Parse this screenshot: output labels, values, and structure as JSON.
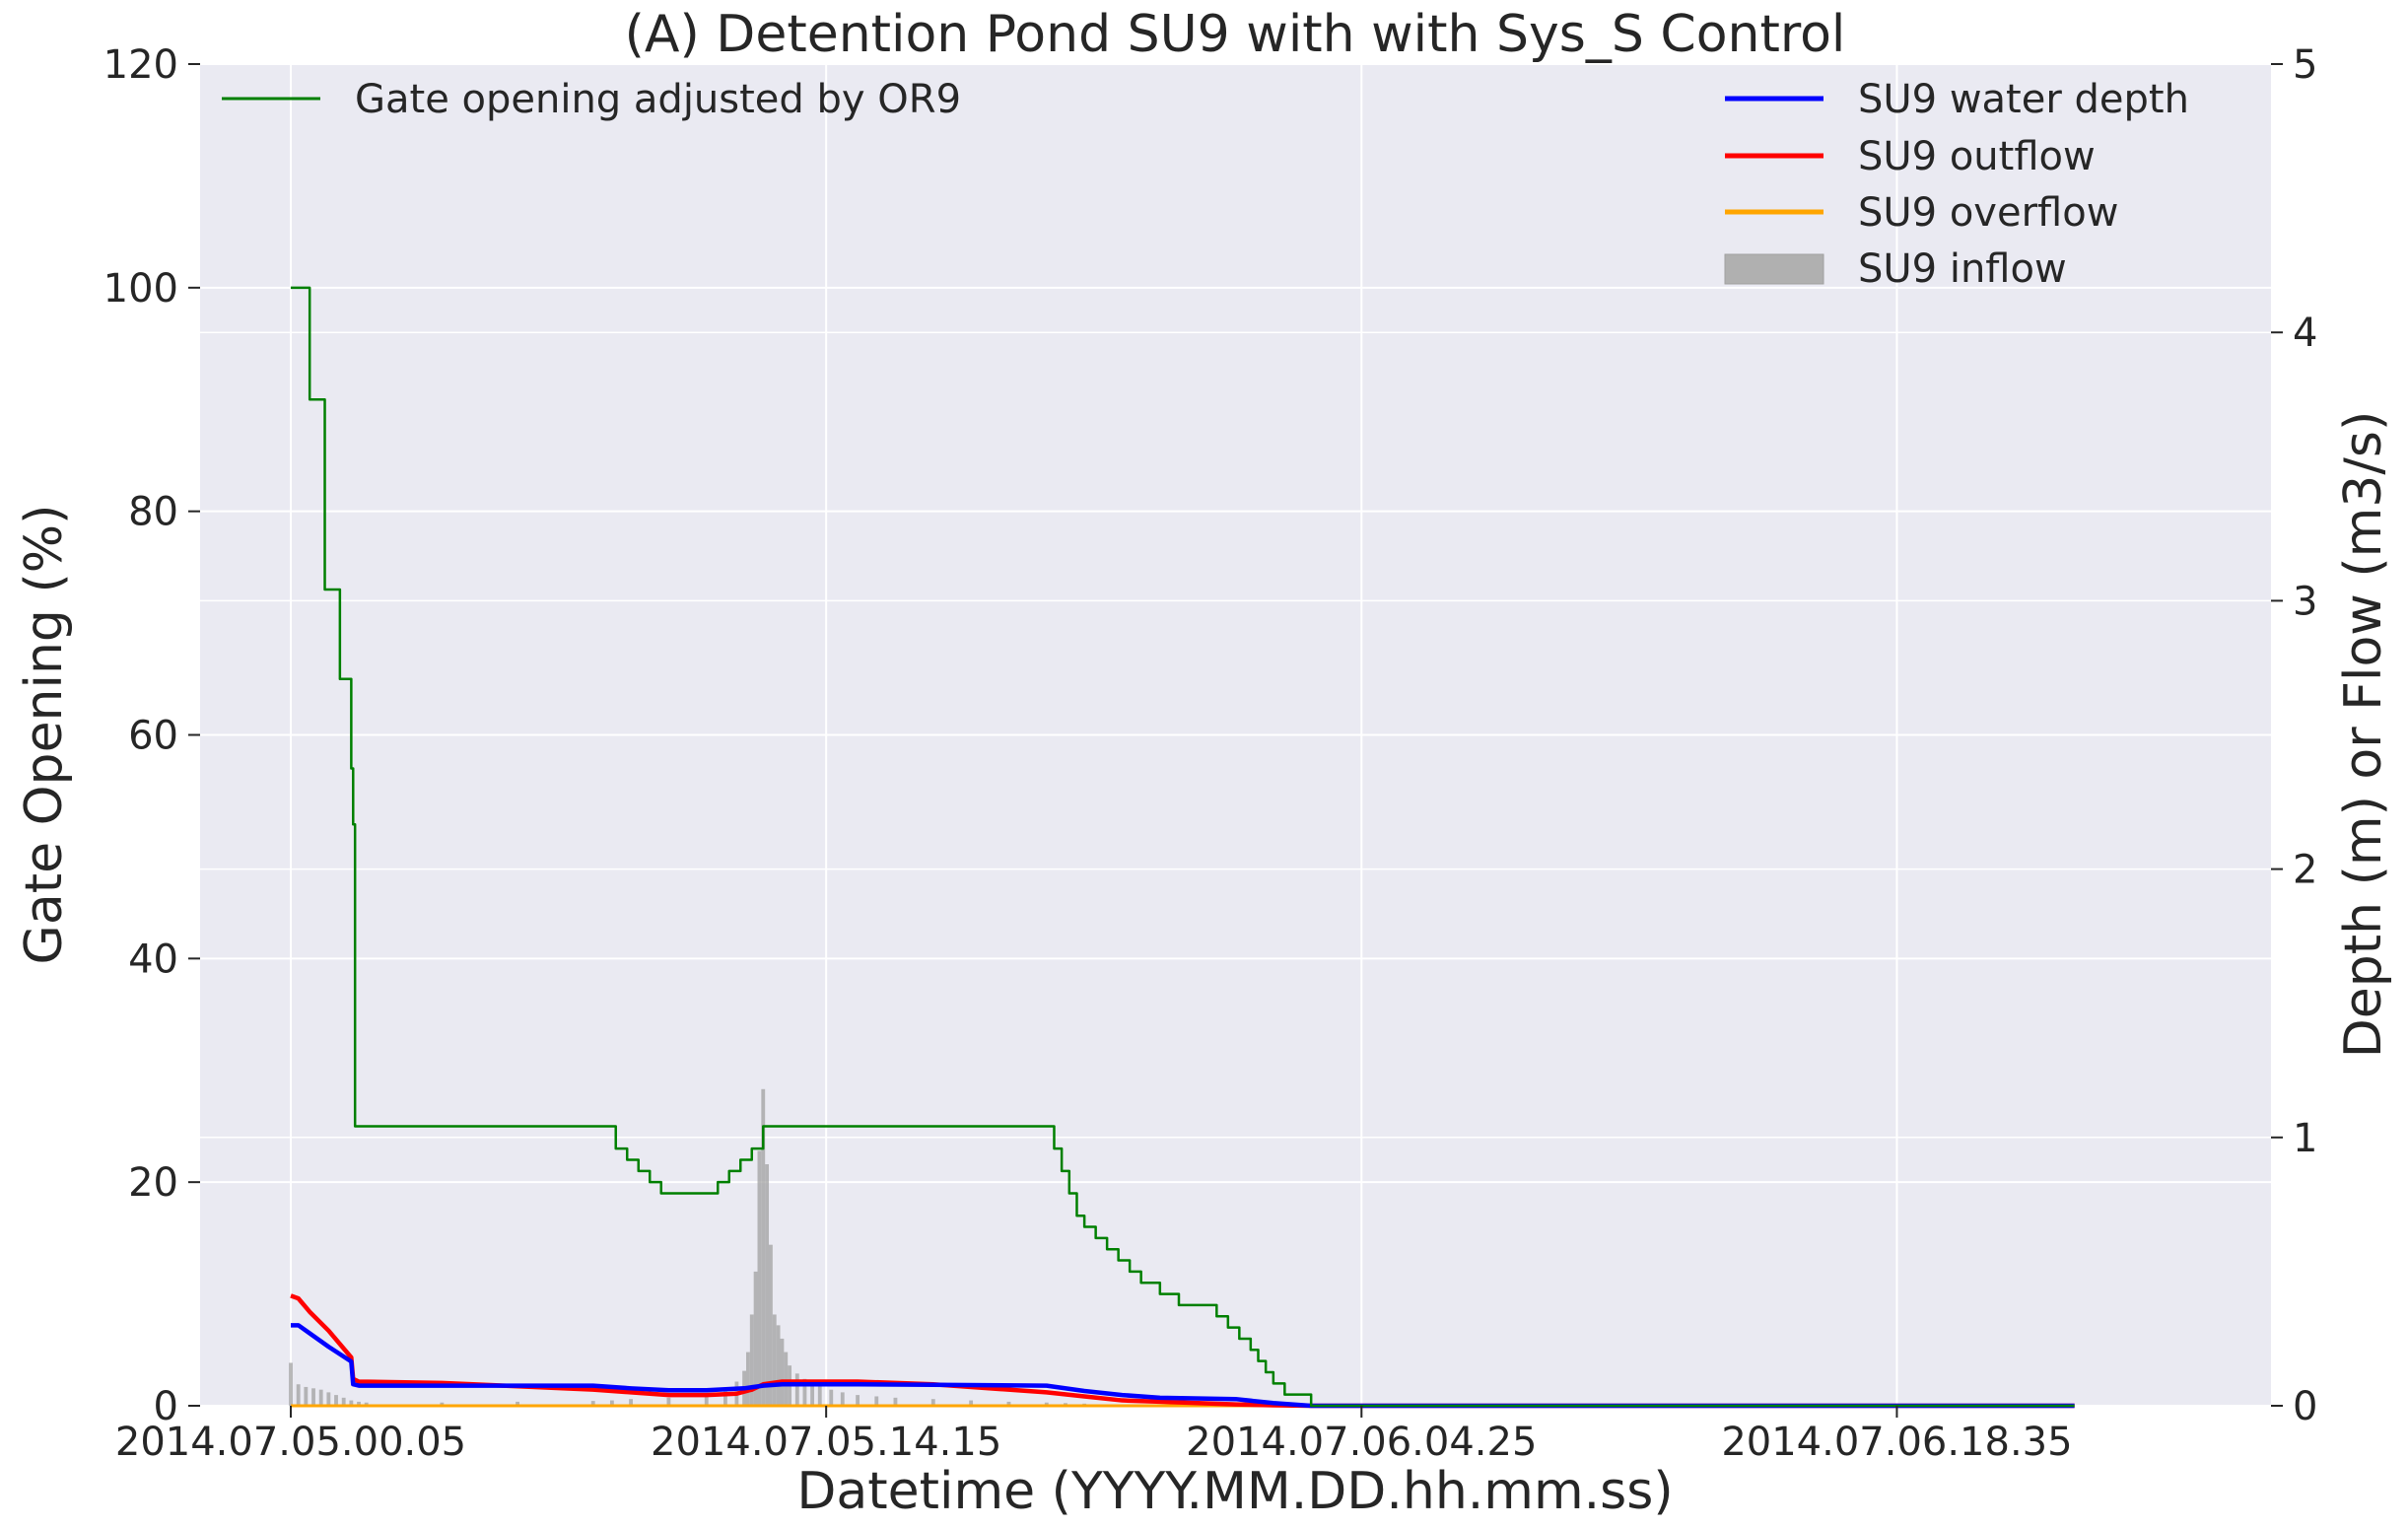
{
  "chart_data": {
    "type": "line",
    "title": "(A) Detention Pond SU9 with with Sys_S Control",
    "xlabel": "Datetime (YYYY.MM.DD.hh.mm.ss)",
    "ylabel_left": "Gate Opening (%)",
    "ylabel_right": "Depth (m) or Flow (m3/s)",
    "ylim_left": [
      0,
      120
    ],
    "ylim_right": [
      0,
      5
    ],
    "yticks_left": [
      "0",
      "20",
      "40",
      "60",
      "80",
      "100",
      "120"
    ],
    "yticks_right": [
      "0",
      "1",
      "2",
      "3",
      "4",
      "5"
    ],
    "x_hours_range": [
      -2.4,
      52.4
    ],
    "xticks": [
      {
        "label": "2014.07.05.00.05",
        "hour": 0
      },
      {
        "label": "2014.07.05.14.15",
        "hour": 14.1667
      },
      {
        "label": "2014.07.06.04.25",
        "hour": 28.3333
      },
      {
        "label": "2014.07.06.18.35",
        "hour": 42.5
      }
    ],
    "grid": true,
    "colors": {
      "background": "#eaeaf2",
      "grid": "#ffffff",
      "gate": "#008000",
      "depth": "#0000ff",
      "outflow": "#ff0000",
      "overflow": "#ffa500",
      "inflow": "#a0a0a0"
    },
    "legend_left": [
      {
        "label": "Gate opening adjusted by OR9",
        "color": "#008000",
        "kind": "line"
      }
    ],
    "legend_right": [
      {
        "label": "SU9 water depth",
        "color": "#0000ff",
        "kind": "line"
      },
      {
        "label": "SU9 outflow",
        "color": "#ff0000",
        "kind": "line"
      },
      {
        "label": "SU9 overflow",
        "color": "#ffa500",
        "kind": "line"
      },
      {
        "label": "SU9 inflow",
        "color": "#b0b0b0",
        "kind": "patch"
      }
    ],
    "series": [
      {
        "name": "Gate opening adjusted by OR9",
        "axis": "left",
        "step": true,
        "x": [
          0,
          0.15,
          0.5,
          0.9,
          1.3,
          1.6,
          1.65,
          1.7,
          8.3,
          8.6,
          8.9,
          9.2,
          9.5,
          9.8,
          10.1,
          11.0,
          11.3,
          11.6,
          11.9,
          12.2,
          12.5,
          20.0,
          20.2,
          20.4,
          20.6,
          20.8,
          21.0,
          21.3,
          21.6,
          21.9,
          22.2,
          22.5,
          23.0,
          23.5,
          23.9,
          24.2,
          24.5,
          24.8,
          25.1,
          25.4,
          25.6,
          25.8,
          26.0,
          26.3,
          26.6,
          27.0,
          27.5,
          47.2
        ],
        "y": [
          100,
          100,
          90,
          73,
          65,
          57,
          52,
          25,
          25,
          23,
          22,
          21,
          20,
          19,
          19,
          19,
          20,
          21,
          22,
          23,
          25,
          25,
          23,
          21,
          19,
          17,
          16,
          15,
          14,
          13,
          12,
          11,
          10,
          9,
          9,
          9,
          8,
          7,
          6,
          5,
          4,
          3,
          2,
          1,
          1,
          0,
          0,
          0
        ]
      },
      {
        "name": "SU9 water depth",
        "axis": "right",
        "x": [
          0,
          0.2,
          0.5,
          1.0,
          1.6,
          1.65,
          1.8,
          4.0,
          8.0,
          9.0,
          10.0,
          11.0,
          12.0,
          12.5,
          13.0,
          13.5,
          15.0,
          17.0,
          20.0,
          21.0,
          22.0,
          23.0,
          25.0,
          26.0,
          27.0,
          47.2
        ],
        "y": [
          0.3,
          0.3,
          0.27,
          0.22,
          0.165,
          0.08,
          0.075,
          0.075,
          0.075,
          0.065,
          0.058,
          0.058,
          0.065,
          0.075,
          0.08,
          0.08,
          0.08,
          0.078,
          0.075,
          0.055,
          0.04,
          0.03,
          0.025,
          0.01,
          0.0,
          0.0
        ]
      },
      {
        "name": "SU9 outflow",
        "axis": "right",
        "x": [
          0,
          0.2,
          0.5,
          1.0,
          1.6,
          1.65,
          1.8,
          4.0,
          8.0,
          9.0,
          10.0,
          11.0,
          11.8,
          12.2,
          12.5,
          13.0,
          15.0,
          17.0,
          20.0,
          21.0,
          22.0,
          23.0,
          24.0,
          25.0,
          26.0,
          27.0,
          47.2
        ],
        "y": [
          0.41,
          0.4,
          0.35,
          0.28,
          0.18,
          0.1,
          0.09,
          0.085,
          0.06,
          0.05,
          0.04,
          0.04,
          0.045,
          0.06,
          0.08,
          0.09,
          0.09,
          0.08,
          0.05,
          0.035,
          0.02,
          0.015,
          0.01,
          0.005,
          0.002,
          0.0,
          0.0
        ]
      },
      {
        "name": "SU9 overflow",
        "axis": "right",
        "x": [
          0,
          47.2
        ],
        "y": [
          0.0,
          0.0
        ]
      },
      {
        "name": "SU9 inflow",
        "axis": "right",
        "kind": "bars",
        "x": [
          0,
          0.2,
          0.4,
          0.6,
          0.8,
          1.0,
          1.2,
          1.4,
          1.6,
          1.8,
          2.0,
          4.0,
          6.0,
          8.0,
          8.5,
          9.0,
          10.0,
          11.0,
          11.5,
          11.8,
          12.0,
          12.1,
          12.2,
          12.3,
          12.4,
          12.5,
          12.6,
          12.7,
          12.8,
          12.9,
          13.0,
          13.1,
          13.2,
          13.4,
          13.6,
          13.8,
          14.0,
          14.3,
          14.6,
          15.0,
          15.5,
          16.0,
          17.0,
          18.0,
          19.0,
          20.0,
          20.5,
          21.0,
          22.0,
          23.0,
          24.0
        ],
        "y": [
          0.16,
          0.08,
          0.07,
          0.065,
          0.06,
          0.05,
          0.04,
          0.03,
          0.02,
          0.015,
          0.012,
          0.012,
          0.015,
          0.018,
          0.02,
          0.025,
          0.03,
          0.04,
          0.06,
          0.09,
          0.13,
          0.2,
          0.34,
          0.5,
          0.95,
          1.18,
          0.9,
          0.6,
          0.34,
          0.3,
          0.25,
          0.2,
          0.15,
          0.12,
          0.1,
          0.09,
          0.08,
          0.06,
          0.05,
          0.04,
          0.035,
          0.03,
          0.025,
          0.02,
          0.015,
          0.012,
          0.01,
          0.008,
          0.005,
          0.003,
          0.002
        ]
      }
    ]
  }
}
